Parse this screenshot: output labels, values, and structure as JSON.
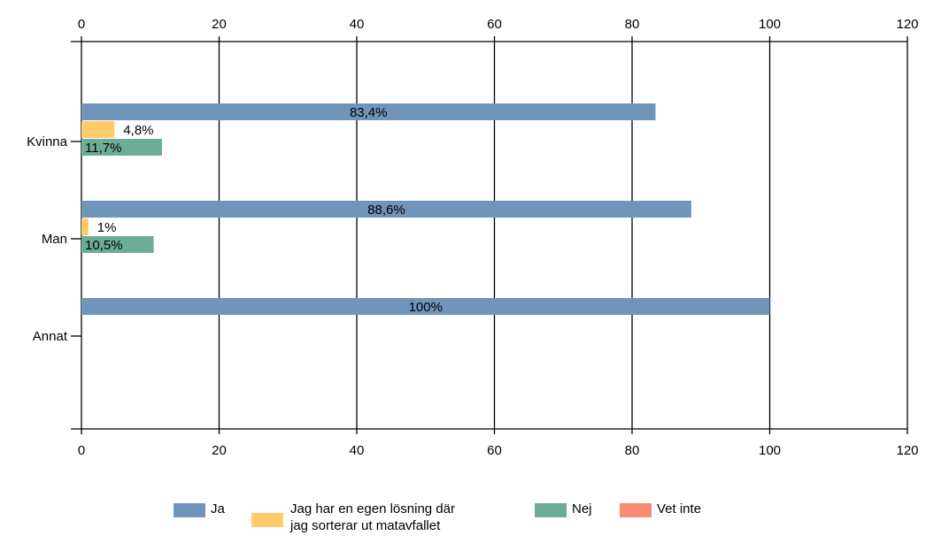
{
  "chart_data": {
    "type": "bar",
    "orientation": "horizontal",
    "categories": [
      "Kvinna",
      "Man",
      "Annat"
    ],
    "series": [
      {
        "name": "Ja",
        "color": "#6f95ba",
        "values": [
          83.4,
          88.6,
          100
        ],
        "labels": [
          "83,4%",
          "88,6%",
          "100%"
        ]
      },
      {
        "name": "Jag har en egen lösning där jag sorterar ut matavfallet",
        "color": "#ffcb6b",
        "values": [
          4.8,
          1,
          0
        ],
        "labels": [
          "4,8%",
          "1%",
          ""
        ]
      },
      {
        "name": "Nej",
        "color": "#6cad96",
        "values": [
          11.7,
          10.5,
          0
        ],
        "labels": [
          "11,7%",
          "10,5%",
          ""
        ]
      },
      {
        "name": "Vet inte",
        "color": "#f98b74",
        "values": [
          0,
          0,
          0
        ],
        "labels": [
          "",
          "",
          ""
        ]
      }
    ],
    "xlim": [
      0,
      120
    ],
    "xticks": [
      "0",
      "20",
      "40",
      "60",
      "80",
      "100",
      "120"
    ],
    "grid": true,
    "legend_position": "bottom",
    "title": "",
    "xlabel": "",
    "ylabel": ""
  },
  "legend": [
    {
      "line1": "Ja",
      "line2": ""
    },
    {
      "line1": "Jag har en egen lösning där",
      "line2": "jag sorterar ut matavfallet"
    },
    {
      "line1": "Nej",
      "line2": ""
    },
    {
      "line1": "Vet inte",
      "line2": ""
    }
  ]
}
